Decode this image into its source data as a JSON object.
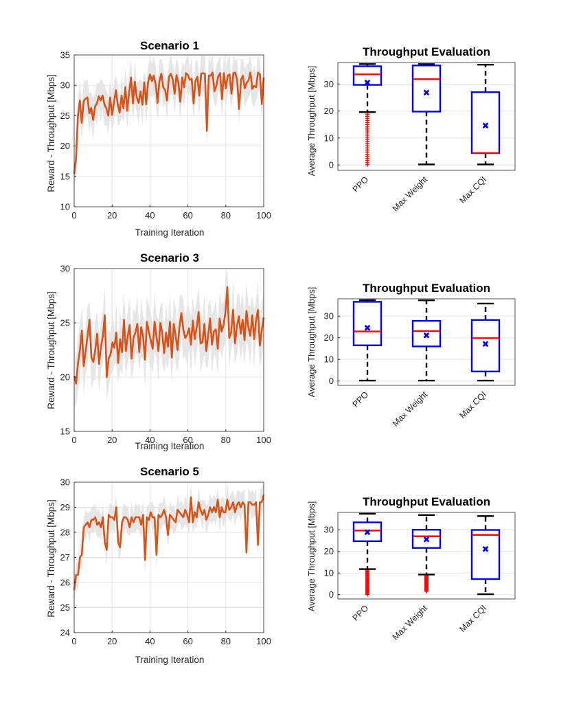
{
  "colors": {
    "line": "#D95319",
    "band": "#E6E6E6",
    "grid": "#E3E3E3",
    "box": "#0000FF",
    "median": "#FF0000",
    "whisker": "#000000",
    "outlier": "#FF0000",
    "mean": "#0000FF"
  },
  "chart_data": [
    {
      "type": "line",
      "title": "Scenario 1",
      "xlabel": "Training Iteration",
      "ylabel": "Reward - Throughput [Mbps]",
      "xlim": [
        0,
        100
      ],
      "ylim": [
        10,
        35
      ],
      "xticks": [
        0,
        20,
        40,
        60,
        80,
        100
      ],
      "yticks": [
        10,
        15,
        20,
        25,
        30,
        35
      ],
      "grid": true,
      "band_width": 3.5,
      "y": [
        15.4,
        18.0,
        25.0,
        27.5,
        23.8,
        27.4,
        27.8,
        28.0,
        25.4,
        26.3,
        24.3,
        26.5,
        27.0,
        28.2,
        27.5,
        28.3,
        26.8,
        26.2,
        25.0,
        28.0,
        25.1,
        27.2,
        29.2,
        26.8,
        25.5,
        28.3,
        26.2,
        29.7,
        25.8,
        28.8,
        31.3,
        27.0,
        30.6,
        28.0,
        27.1,
        29.0,
        26.8,
        30.5,
        26.9,
        30.5,
        31.8,
        30.7,
        31.6,
        30.1,
        27.1,
        30.8,
        31.9,
        29.7,
        29.2,
        27.5,
        31.4,
        31.9,
        31.0,
        28.6,
        31.7,
        30.4,
        27.3,
        31.3,
        29.7,
        32.0,
        31.7,
        30.9,
        31.1,
        27.0,
        30.7,
        31.4,
        28.3,
        31.9,
        32.0,
        31.9,
        22.5,
        31.6,
        31.6,
        32.1,
        29.0,
        29.9,
        31.5,
        32.0,
        27.7,
        32.0,
        29.5,
        31.6,
        31.8,
        28.6,
        32.0,
        32.1,
        30.8,
        26.1,
        30.9,
        31.6,
        29.5,
        30.4,
        30.8,
        32.1,
        29.4,
        29.9,
        29.7,
        32.1,
        31.8,
        26.9,
        31.3
      ]
    },
    {
      "type": "box",
      "title": "Throughput Evaluation",
      "ylabel": "Average Throughput [Mbps]",
      "categories": [
        "PPO",
        "Max Weight",
        "Max CQI"
      ],
      "ylim": [
        -2,
        38
      ],
      "yticks": [
        0,
        10,
        20,
        30
      ],
      "boxes": [
        {
          "q1": 29.7,
          "median": 33.6,
          "q3": 36.6,
          "whisker_low": 19.6,
          "whisker_high": 37.4,
          "mean": 30.5,
          "outliers_range": [
            0,
            19.6
          ]
        },
        {
          "q1": 19.8,
          "median": 31.8,
          "q3": 36.9,
          "whisker_low": 0.2,
          "whisker_high": 37.4,
          "mean": 26.8
        },
        {
          "q1": 4.4,
          "median": 4.4,
          "q3": 27.0,
          "whisker_low": 0.2,
          "whisker_high": 37.2,
          "mean": 14.5
        }
      ]
    },
    {
      "type": "line",
      "title": "Scenario 3",
      "xlabel": "Training Iteration",
      "ylabel": "Reward - Throughput [Mbps]",
      "xlim": [
        0,
        100
      ],
      "ylim": [
        15,
        30
      ],
      "xticks": [
        0,
        20,
        40,
        60,
        80,
        100
      ],
      "yticks": [
        15,
        20,
        25,
        30
      ],
      "grid": true,
      "band_width": 2.8,
      "y": [
        20.1,
        19.4,
        21.3,
        22.5,
        24.3,
        21.0,
        22.4,
        23.8,
        25.3,
        21.8,
        21.4,
        22.5,
        24.0,
        21.2,
        22.8,
        23.8,
        25.7,
        20.0,
        21.7,
        22.1,
        23.2,
        22.7,
        24.1,
        21.3,
        23.5,
        22.3,
        25.3,
        22.4,
        23.8,
        24.8,
        21.7,
        23.6,
        24.1,
        24.9,
        22.3,
        24.6,
        23.7,
        21.6,
        25.1,
        24.2,
        23.4,
        22.6,
        25.1,
        23.7,
        22.4,
        25.0,
        24.1,
        22.2,
        24.1,
        22.8,
        25.1,
        21.8,
        24.9,
        23.8,
        22.5,
        24.6,
        25.9,
        24.4,
        23.6,
        23.9,
        24.5,
        23.0,
        25.2,
        23.5,
        24.6,
        26.0,
        23.1,
        23.2,
        24.9,
        22.4,
        23.9,
        25.4,
        23.0,
        24.2,
        24.4,
        22.6,
        25.4,
        24.2,
        24.8,
        25.9,
        28.3,
        23.6,
        24.1,
        26.2,
        23.1,
        24.7,
        25.6,
        24.0,
        25.3,
        23.4,
        26.1,
        24.6,
        23.8,
        25.7,
        23.5,
        25.2,
        26.2,
        22.9,
        24.3,
        25.5
      ]
    },
    {
      "type": "box",
      "title": "Throughput Evaluation",
      "ylabel": "Average Throughput [Mbps]",
      "categories": [
        "PPO",
        "Max Weight",
        "Max CQI"
      ],
      "ylim": [
        -2,
        38
      ],
      "yticks": [
        0,
        10,
        20,
        30
      ],
      "boxes": [
        {
          "q1": 16.5,
          "median": 22.9,
          "q3": 36.6,
          "whisker_low": 0.2,
          "whisker_high": 37.4,
          "mean": 24.5
        },
        {
          "q1": 16.0,
          "median": 23.1,
          "q3": 27.8,
          "whisker_low": 0.2,
          "whisker_high": 37.3,
          "mean": 21.0
        },
        {
          "q1": 4.4,
          "median": 19.8,
          "q3": 28.2,
          "whisker_low": 0.2,
          "whisker_high": 35.8,
          "mean": 17.0
        }
      ]
    },
    {
      "type": "line",
      "title": "Scenario 5",
      "xlabel": "Training Iteration",
      "ylabel": "Reward - Throughput [Mbps]",
      "xlim": [
        0,
        100
      ],
      "ylim": [
        24,
        30
      ],
      "xticks": [
        0,
        20,
        40,
        60,
        80,
        100
      ],
      "yticks": [
        24,
        25,
        26,
        27,
        28,
        29,
        30
      ],
      "grid": true,
      "band_width": 0.6,
      "y": [
        25.7,
        26.3,
        26.3,
        27.0,
        27.1,
        28.2,
        28.3,
        28.4,
        28.2,
        28.5,
        28.5,
        28.6,
        28.3,
        28.4,
        28.2,
        28.6,
        27.6,
        27.3,
        28.7,
        28.6,
        28.6,
        28.5,
        29.0,
        27.6,
        27.4,
        28.4,
        28.6,
        28.6,
        28.5,
        28.2,
        28.6,
        28.4,
        28.6,
        28.6,
        28.6,
        28.3,
        28.7,
        26.9,
        28.6,
        28.5,
        28.8,
        28.6,
        28.6,
        27.1,
        28.7,
        28.6,
        28.7,
        28.9,
        28.6,
        27.9,
        28.7,
        28.6,
        28.5,
        28.4,
        28.9,
        28.8,
        28.7,
        28.6,
        28.9,
        28.7,
        28.4,
        29.4,
        28.4,
        28.8,
        28.6,
        29.2,
        28.9,
        28.7,
        28.9,
        28.5,
        28.7,
        29.0,
        28.8,
        29.0,
        28.8,
        29.3,
        28.6,
        29.0,
        28.8,
        28.8,
        29.3,
        28.9,
        29.0,
        29.2,
        28.8,
        29.1,
        29.2,
        29.0,
        29.2,
        29.1,
        27.2,
        29.2,
        29.2,
        29.1,
        29.1,
        29.2,
        27.5,
        29.2,
        29.2,
        29.5
      ]
    },
    {
      "type": "box",
      "title": "Throughput Evaluation",
      "ylabel": "Average Throughput [Mbps]",
      "categories": [
        "PPO",
        "Max Weight",
        "Max CQI"
      ],
      "ylim": [
        -2,
        38
      ],
      "yticks": [
        0,
        10,
        20,
        30
      ],
      "boxes": [
        {
          "q1": 24.7,
          "median": 29.6,
          "q3": 33.4,
          "whisker_low": 11.8,
          "whisker_high": 37.4,
          "mean": 28.8,
          "outliers_range": [
            0,
            11.8
          ]
        },
        {
          "q1": 21.6,
          "median": 27.0,
          "q3": 30.0,
          "whisker_low": 9.3,
          "whisker_high": 36.8,
          "mean": 25.4,
          "outliers_range": [
            1.5,
            9.3
          ]
        },
        {
          "q1": 7.2,
          "median": 27.6,
          "q3": 29.9,
          "whisker_low": 0.2,
          "whisker_high": 36.3,
          "mean": 21.0
        }
      ]
    }
  ]
}
